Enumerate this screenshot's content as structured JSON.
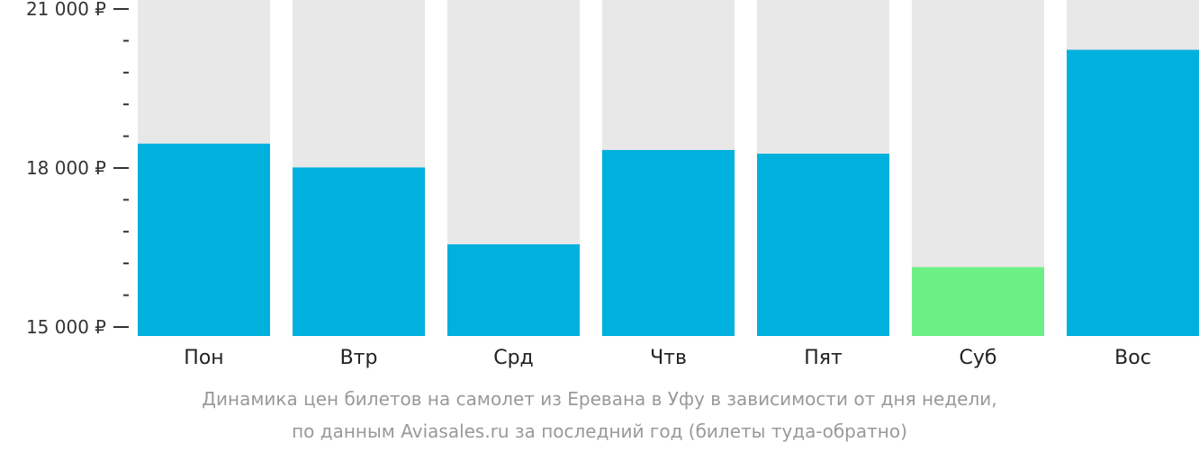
{
  "chart_data": {
    "type": "bar",
    "categories": [
      "Пон",
      "Втр",
      "Срд",
      "Чтв",
      "Пят",
      "Суб",
      "Вос"
    ],
    "values": [
      18460,
      18010,
      16560,
      18340,
      18270,
      16130,
      20230
    ],
    "ylim": [
      15000,
      21000
    ],
    "yticks": [
      {
        "value": 21000,
        "label": "21 000 ₽"
      },
      {
        "value": 18000,
        "label": "18 000 ₽"
      },
      {
        "value": 15000,
        "label": "15 000 ₽"
      }
    ],
    "minor_tick_step": 600,
    "highlight_index": 5,
    "colors": {
      "bar": "#00b0dd",
      "bar_min": "#6cf086",
      "track": "#e8e8e8"
    }
  },
  "caption": {
    "line1": "Динамика цен билетов на самолет из Еревана в Уфу в зависимости от дня недели,",
    "line2": "по данным Aviasales.ru за последний год (билеты туда-обратно)"
  }
}
